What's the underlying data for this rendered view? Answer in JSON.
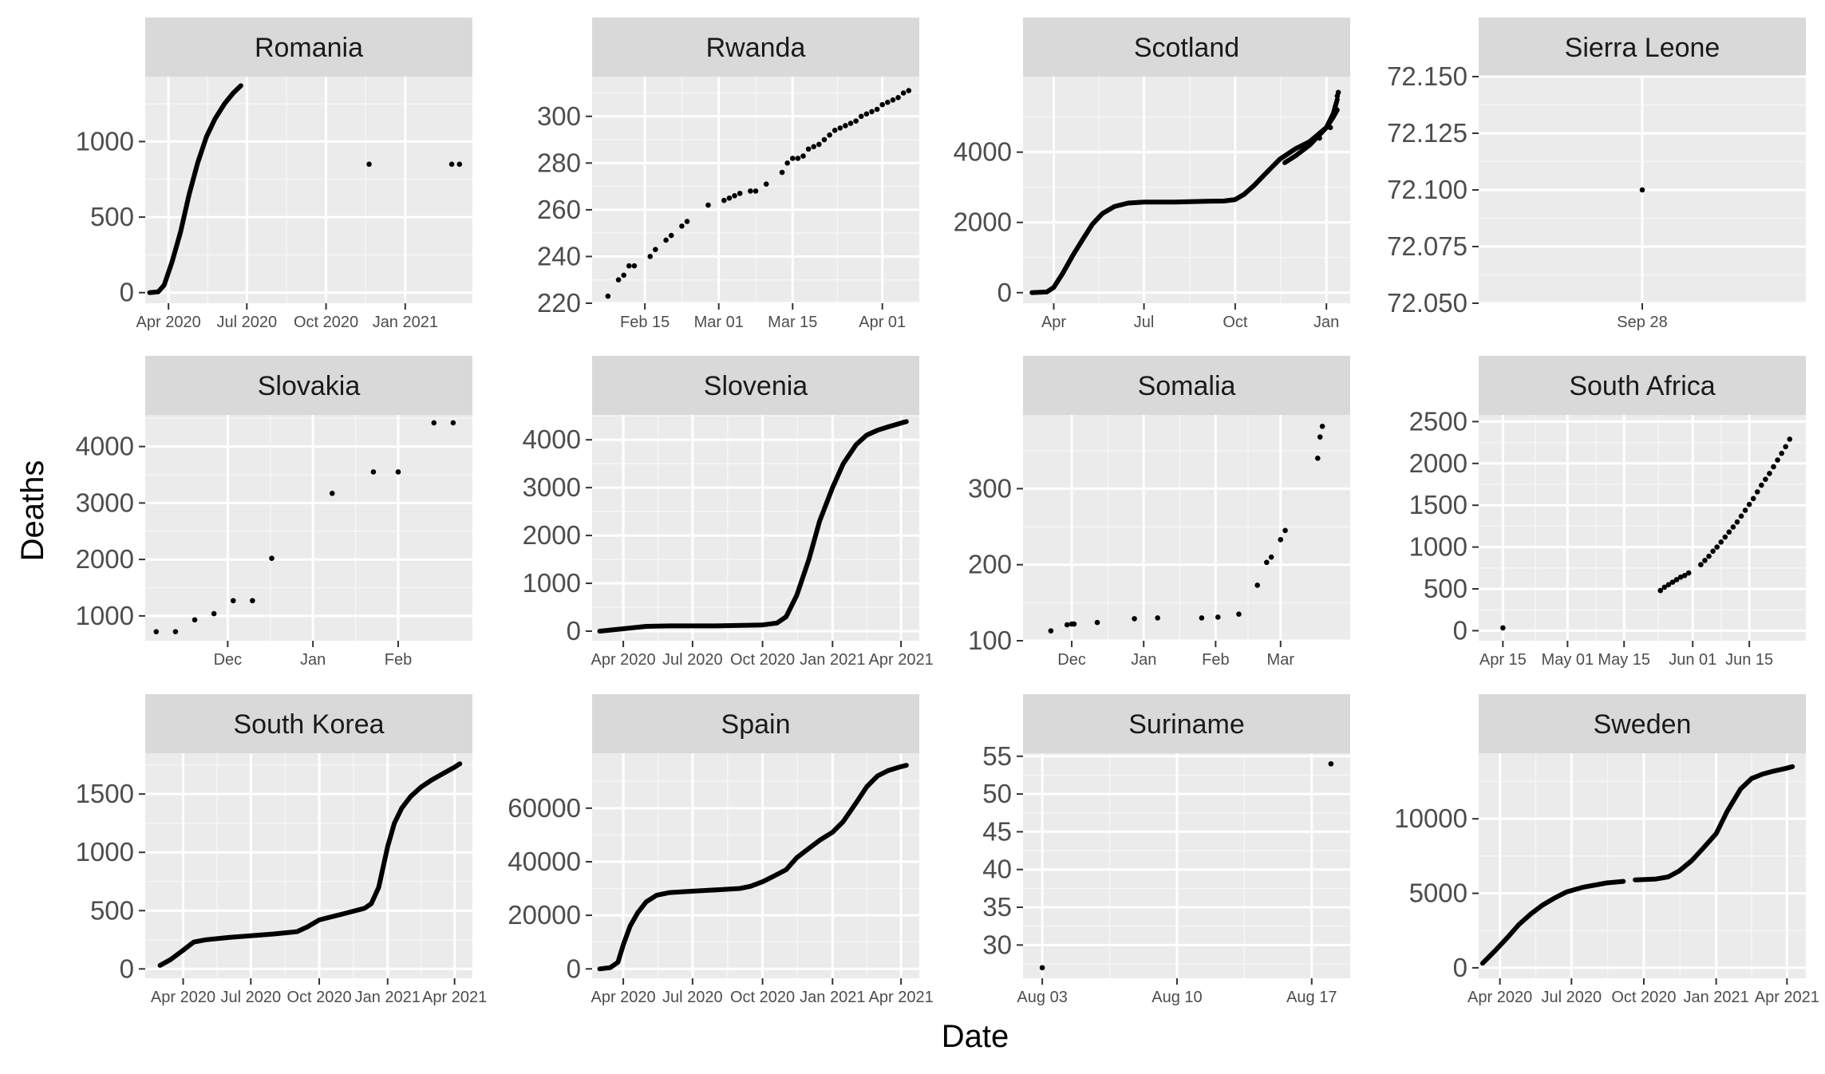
{
  "labels": {
    "xlabel": "Date",
    "ylabel": "Deaths"
  },
  "colors": {
    "panel_bg": "#EBEBEB",
    "strip_bg": "#D9D9D9",
    "grid_major": "#FFFFFF",
    "grid_minor": "#F5F5F5",
    "point": "#000000",
    "tick": "#333333"
  },
  "chart_data": [
    {
      "type": "scatter",
      "title": "Romania",
      "x_ticks": [
        "Apr 2020",
        "Jul 2020",
        "Oct 2020",
        "Jan 2021"
      ],
      "x_tick_dates": [
        "2020-04-01",
        "2020-07-01",
        "2020-10-01",
        "2021-01-01"
      ],
      "xlim": [
        "2020-03-05",
        "2021-03-20"
      ],
      "y_ticks": [
        0,
        500,
        1000
      ],
      "ylim": [
        -70,
        1430
      ],
      "segments": [
        {
          "x": [
            "2020-03-10",
            "2020-03-20",
            "2020-03-27",
            "2020-04-05",
            "2020-04-15",
            "2020-04-25",
            "2020-05-05",
            "2020-05-15",
            "2020-05-25",
            "2020-06-05",
            "2020-06-15",
            "2020-06-24"
          ],
          "y": [
            0,
            5,
            50,
            200,
            400,
            650,
            860,
            1030,
            1150,
            1250,
            1320,
            1370
          ]
        }
      ],
      "x": [
        "2020-11-20",
        "2021-02-24",
        "2021-03-05"
      ],
      "y": [
        850,
        850,
        850
      ]
    },
    {
      "type": "scatter",
      "title": "Rwanda",
      "x_ticks": [
        "Feb 15",
        "Mar 01",
        "Mar 15",
        "Apr 01"
      ],
      "x_tick_dates": [
        "2021-02-15",
        "2021-03-01",
        "2021-03-15",
        "2021-04-01"
      ],
      "xlim": [
        "2021-02-05",
        "2021-04-08"
      ],
      "y_ticks": [
        220,
        240,
        260,
        280,
        300
      ],
      "ylim": [
        220,
        317
      ],
      "x": [
        "2021-02-08",
        "2021-02-10",
        "2021-02-11",
        "2021-02-12",
        "2021-02-13",
        "2021-02-16",
        "2021-02-17",
        "2021-02-19",
        "2021-02-20",
        "2021-02-22",
        "2021-02-23",
        "2021-02-27",
        "2021-03-02",
        "2021-03-03",
        "2021-03-04",
        "2021-03-05",
        "2021-03-07",
        "2021-03-08",
        "2021-03-10",
        "2021-03-13",
        "2021-03-14",
        "2021-03-15",
        "2021-03-16",
        "2021-03-17",
        "2021-03-18",
        "2021-03-19",
        "2021-03-20",
        "2021-03-21",
        "2021-03-22",
        "2021-03-23",
        "2021-03-24",
        "2021-03-25",
        "2021-03-26",
        "2021-03-27",
        "2021-03-28",
        "2021-03-29",
        "2021-03-30",
        "2021-03-31",
        "2021-04-01",
        "2021-04-02",
        "2021-04-03",
        "2021-04-04",
        "2021-04-05",
        "2021-04-06"
      ],
      "y": [
        223,
        230,
        232,
        236,
        236,
        240,
        243,
        247,
        249,
        253,
        255,
        262,
        264,
        265,
        266,
        267,
        268,
        268,
        271,
        276,
        280,
        282,
        282,
        283,
        286,
        287,
        288,
        290,
        292,
        294,
        295,
        296,
        297,
        298,
        300,
        301,
        302,
        303,
        305,
        306,
        307,
        308,
        310,
        311
      ]
    },
    {
      "type": "scatter",
      "title": "Scotland",
      "x_ticks": [
        "Apr",
        "Jul",
        "Oct",
        "Jan"
      ],
      "x_tick_dates": [
        "2020-04-01",
        "2020-07-01",
        "2020-10-01",
        "2021-01-01"
      ],
      "xlim": [
        "2020-03-01",
        "2021-01-25"
      ],
      "y_ticks": [
        0,
        2000,
        4000
      ],
      "ylim": [
        -300,
        6150
      ],
      "segments": [
        {
          "x": [
            "2020-03-10",
            "2020-03-25",
            "2020-04-01",
            "2020-04-10",
            "2020-04-20",
            "2020-05-01",
            "2020-05-10",
            "2020-05-20",
            "2020-06-01",
            "2020-06-15",
            "2020-07-01",
            "2020-08-01",
            "2020-09-01",
            "2020-09-20",
            "2020-10-01",
            "2020-10-10",
            "2020-10-20",
            "2020-11-01",
            "2020-11-15",
            "2020-12-01",
            "2020-12-15",
            "2021-01-01",
            "2021-01-08",
            "2021-01-12"
          ],
          "y": [
            0,
            20,
            150,
            550,
            1050,
            1550,
            1950,
            2250,
            2450,
            2550,
            2580,
            2580,
            2600,
            2610,
            2650,
            2800,
            3050,
            3400,
            3800,
            4100,
            4300,
            4700,
            5000,
            5200
          ]
        },
        {
          "x": [
            "2020-11-20",
            "2020-12-01",
            "2020-12-15",
            "2021-01-01",
            "2021-01-08",
            "2021-01-12"
          ],
          "y": [
            3700,
            3900,
            4200,
            4700,
            5100,
            5500
          ]
        }
      ],
      "x": [
        "2020-12-25",
        "2021-01-05",
        "2021-01-10",
        "2021-01-12",
        "2021-01-13"
      ],
      "y": [
        4400,
        4700,
        5300,
        5600,
        5700
      ]
    },
    {
      "type": "scatter",
      "title": "Sierra Leone",
      "x_ticks": [
        "Sep 28"
      ],
      "x_tick_dates": [
        "2020-09-28"
      ],
      "xlim": [
        "2020-09-26",
        "2020-09-30"
      ],
      "y_ticks": [
        72.05,
        72.075,
        72.1,
        72.125,
        72.15
      ],
      "y_tick_labels": [
        "72.050",
        "72.075",
        "72.100",
        "72.125",
        "72.150"
      ],
      "ylim": [
        72.05,
        72.15
      ],
      "x": [
        "2020-09-28"
      ],
      "y": [
        72.1
      ]
    },
    {
      "type": "scatter",
      "title": "Slovakia",
      "x_ticks": [
        "Dec",
        "Jan",
        "Feb"
      ],
      "x_tick_dates": [
        "2020-12-01",
        "2021-01-01",
        "2021-02-01"
      ],
      "xlim": [
        "2020-11-01",
        "2021-02-28"
      ],
      "y_ticks": [
        1000,
        2000,
        3000,
        4000
      ],
      "ylim": [
        560,
        4560
      ],
      "x": [
        "2020-11-05",
        "2020-11-12",
        "2020-11-19",
        "2020-11-26",
        "2020-12-03",
        "2020-12-10",
        "2020-12-17",
        "2021-01-08",
        "2021-01-23",
        "2021-02-01",
        "2021-02-14",
        "2021-02-21"
      ],
      "y": [
        720,
        720,
        930,
        1040,
        1270,
        1270,
        2020,
        3170,
        3550,
        3550,
        4420,
        4420
      ]
    },
    {
      "type": "scatter",
      "title": "Slovenia",
      "x_ticks": [
        "Apr 2020",
        "Jul 2020",
        "Oct 2020",
        "Jan 2021",
        "Apr 2021"
      ],
      "x_tick_dates": [
        "2020-04-01",
        "2020-07-01",
        "2020-10-01",
        "2021-01-01",
        "2021-04-01"
      ],
      "xlim": [
        "2020-02-20",
        "2021-04-25"
      ],
      "y_ticks": [
        0,
        1000,
        2000,
        3000,
        4000
      ],
      "ylim": [
        -200,
        4520
      ],
      "segments": [
        {
          "x": [
            "2020-03-01",
            "2020-04-01",
            "2020-05-01",
            "2020-06-01",
            "2020-08-01",
            "2020-10-01",
            "2020-10-20",
            "2020-11-01",
            "2020-11-15",
            "2020-12-01",
            "2020-12-15",
            "2021-01-01",
            "2021-01-15",
            "2021-02-01",
            "2021-02-15",
            "2021-03-01",
            "2021-03-15",
            "2021-04-01",
            "2021-04-08"
          ],
          "y": [
            0,
            50,
            100,
            110,
            110,
            130,
            170,
            300,
            750,
            1500,
            2300,
            3000,
            3500,
            3900,
            4100,
            4200,
            4270,
            4350,
            4380
          ]
        }
      ]
    },
    {
      "type": "scatter",
      "title": "Somalia",
      "x_ticks": [
        "Dec",
        "Jan",
        "Feb",
        "Mar"
      ],
      "x_tick_dates": [
        "2020-12-01",
        "2021-01-01",
        "2021-02-01",
        "2021-03-01"
      ],
      "xlim": [
        "2020-11-10",
        "2021-03-31"
      ],
      "y_ticks": [
        100,
        200,
        300
      ],
      "ylim": [
        100,
        397
      ],
      "x": [
        "2020-11-22",
        "2020-11-29",
        "2020-12-01",
        "2020-12-02",
        "2020-12-12",
        "2020-12-28",
        "2021-01-07",
        "2021-01-26",
        "2021-02-02",
        "2021-02-11",
        "2021-02-19",
        "2021-02-23",
        "2021-02-25",
        "2021-03-01",
        "2021-03-03",
        "2021-03-17",
        "2021-03-18",
        "2021-03-19"
      ],
      "y": [
        113,
        121,
        122,
        122,
        124,
        129,
        130,
        130,
        131,
        135,
        173,
        203,
        210,
        233,
        245,
        340,
        368,
        382
      ]
    },
    {
      "type": "scatter",
      "title": "South Africa",
      "x_ticks": [
        "Apr 15",
        "May 01",
        "May 15",
        "Jun 01",
        "Jun 15"
      ],
      "x_tick_dates": [
        "2020-04-15",
        "2020-05-01",
        "2020-05-15",
        "2020-06-01",
        "2020-06-15"
      ],
      "xlim": [
        "2020-04-09",
        "2020-06-29"
      ],
      "y_ticks": [
        0,
        500,
        1000,
        1500,
        2000,
        2500
      ],
      "ylim": [
        -120,
        2580
      ],
      "x": [
        "2020-04-15",
        "2020-05-24",
        "2020-05-25",
        "2020-05-26",
        "2020-05-27",
        "2020-05-28",
        "2020-05-29",
        "2020-05-30",
        "2020-05-31",
        "2020-06-03",
        "2020-06-04",
        "2020-06-05",
        "2020-06-06",
        "2020-06-07",
        "2020-06-08",
        "2020-06-09",
        "2020-06-10",
        "2020-06-11",
        "2020-06-12",
        "2020-06-13",
        "2020-06-14",
        "2020-06-15",
        "2020-06-16",
        "2020-06-17",
        "2020-06-18",
        "2020-06-19",
        "2020-06-20",
        "2020-06-21",
        "2020-06-22",
        "2020-06-23",
        "2020-06-24",
        "2020-06-25"
      ],
      "y": [
        34,
        480,
        520,
        550,
        580,
        610,
        640,
        660,
        690,
        790,
        840,
        890,
        950,
        1000,
        1060,
        1120,
        1180,
        1240,
        1300,
        1370,
        1440,
        1510,
        1580,
        1660,
        1740,
        1810,
        1880,
        1960,
        2040,
        2120,
        2200,
        2290
      ]
    },
    {
      "type": "scatter",
      "title": "South Korea",
      "x_ticks": [
        "Apr 2020",
        "Jul 2020",
        "Oct 2020",
        "Jan 2021",
        "Apr 2021"
      ],
      "x_tick_dates": [
        "2020-04-01",
        "2020-07-01",
        "2020-10-01",
        "2021-01-01",
        "2021-04-01"
      ],
      "xlim": [
        "2020-02-10",
        "2021-04-25"
      ],
      "y_ticks": [
        0,
        500,
        1000,
        1500
      ],
      "ylim": [
        -80,
        1850
      ],
      "segments": [
        {
          "x": [
            "2020-03-01",
            "2020-03-15",
            "2020-04-01",
            "2020-04-15",
            "2020-05-01",
            "2020-06-01",
            "2020-07-01",
            "2020-08-01",
            "2020-09-01",
            "2020-09-15",
            "2020-10-01",
            "2020-11-01",
            "2020-12-01",
            "2020-12-10",
            "2020-12-20",
            "2021-01-01",
            "2021-01-10",
            "2021-01-20",
            "2021-02-01",
            "2021-02-15",
            "2021-03-01",
            "2021-03-15",
            "2021-04-01",
            "2021-04-08"
          ],
          "y": [
            30,
            80,
            160,
            230,
            250,
            270,
            285,
            300,
            320,
            360,
            420,
            470,
            520,
            560,
            700,
            1050,
            1250,
            1380,
            1480,
            1560,
            1620,
            1670,
            1730,
            1760
          ]
        }
      ]
    },
    {
      "type": "scatter",
      "title": "Spain",
      "x_ticks": [
        "Apr 2020",
        "Jul 2020",
        "Oct 2020",
        "Jan 2021",
        "Apr 2021"
      ],
      "x_tick_dates": [
        "2020-04-01",
        "2020-07-01",
        "2020-10-01",
        "2021-01-01",
        "2021-04-01"
      ],
      "xlim": [
        "2020-02-20",
        "2021-04-25"
      ],
      "y_ticks": [
        0,
        20000,
        40000,
        60000
      ],
      "ylim": [
        -3500,
        80500
      ],
      "segments": [
        {
          "x": [
            "2020-03-01",
            "2020-03-15",
            "2020-03-25",
            "2020-04-01",
            "2020-04-10",
            "2020-04-20",
            "2020-05-01",
            "2020-05-15",
            "2020-06-01",
            "2020-07-01",
            "2020-08-01",
            "2020-09-01",
            "2020-09-15",
            "2020-10-01",
            "2020-10-15",
            "2020-11-01",
            "2020-11-15",
            "2020-12-01",
            "2020-12-15",
            "2021-01-01",
            "2021-01-15",
            "2021-02-01",
            "2021-02-15",
            "2021-03-01",
            "2021-03-15",
            "2021-04-01",
            "2021-04-08"
          ],
          "y": [
            0,
            500,
            2500,
            9000,
            16000,
            21000,
            25000,
            27500,
            28500,
            29000,
            29500,
            30000,
            30800,
            32500,
            34500,
            37000,
            41500,
            45000,
            48000,
            51000,
            55000,
            62000,
            68000,
            72000,
            74000,
            75500,
            76000
          ]
        }
      ]
    },
    {
      "type": "scatter",
      "title": "Suriname",
      "x_ticks": [
        "Aug 03",
        "Aug 10",
        "Aug 17"
      ],
      "x_tick_dates": [
        "2020-08-03",
        "2020-08-10",
        "2020-08-17"
      ],
      "xlim": [
        "2020-08-02",
        "2020-08-19"
      ],
      "y_ticks": [
        30,
        35,
        40,
        45,
        50,
        55
      ],
      "ylim": [
        25.6,
        55.4
      ],
      "x": [
        "2020-08-03",
        "2020-08-18"
      ],
      "y": [
        27,
        54
      ]
    },
    {
      "type": "scatter",
      "title": "Sweden",
      "x_ticks": [
        "Apr 2020",
        "Jul 2020",
        "Oct 2020",
        "Jan 2021",
        "Apr 2021"
      ],
      "x_tick_dates": [
        "2020-04-01",
        "2020-07-01",
        "2020-10-01",
        "2021-01-01",
        "2021-04-01"
      ],
      "xlim": [
        "2020-03-05",
        "2021-04-25"
      ],
      "y_ticks": [
        0,
        5000,
        10000
      ],
      "ylim": [
        -700,
        14400
      ],
      "segments": [
        {
          "x": [
            "2020-03-10",
            "2020-03-25",
            "2020-04-10",
            "2020-04-25",
            "2020-05-10",
            "2020-05-25",
            "2020-06-10",
            "2020-06-25",
            "2020-07-15",
            "2020-08-15",
            "2020-09-05"
          ],
          "y": [
            300,
            1100,
            2000,
            2900,
            3600,
            4200,
            4700,
            5100,
            5400,
            5700,
            5800
          ]
        },
        {
          "x": [
            "2020-09-20",
            "2020-10-15",
            "2020-11-01",
            "2020-11-15",
            "2020-12-01",
            "2020-12-15",
            "2021-01-01",
            "2021-01-15",
            "2021-02-01",
            "2021-02-15",
            "2021-03-01",
            "2021-03-15",
            "2021-04-01",
            "2021-04-08"
          ],
          "y": [
            5900,
            5950,
            6100,
            6500,
            7200,
            8000,
            9000,
            10500,
            12000,
            12700,
            13000,
            13200,
            13400,
            13500
          ]
        }
      ]
    }
  ]
}
